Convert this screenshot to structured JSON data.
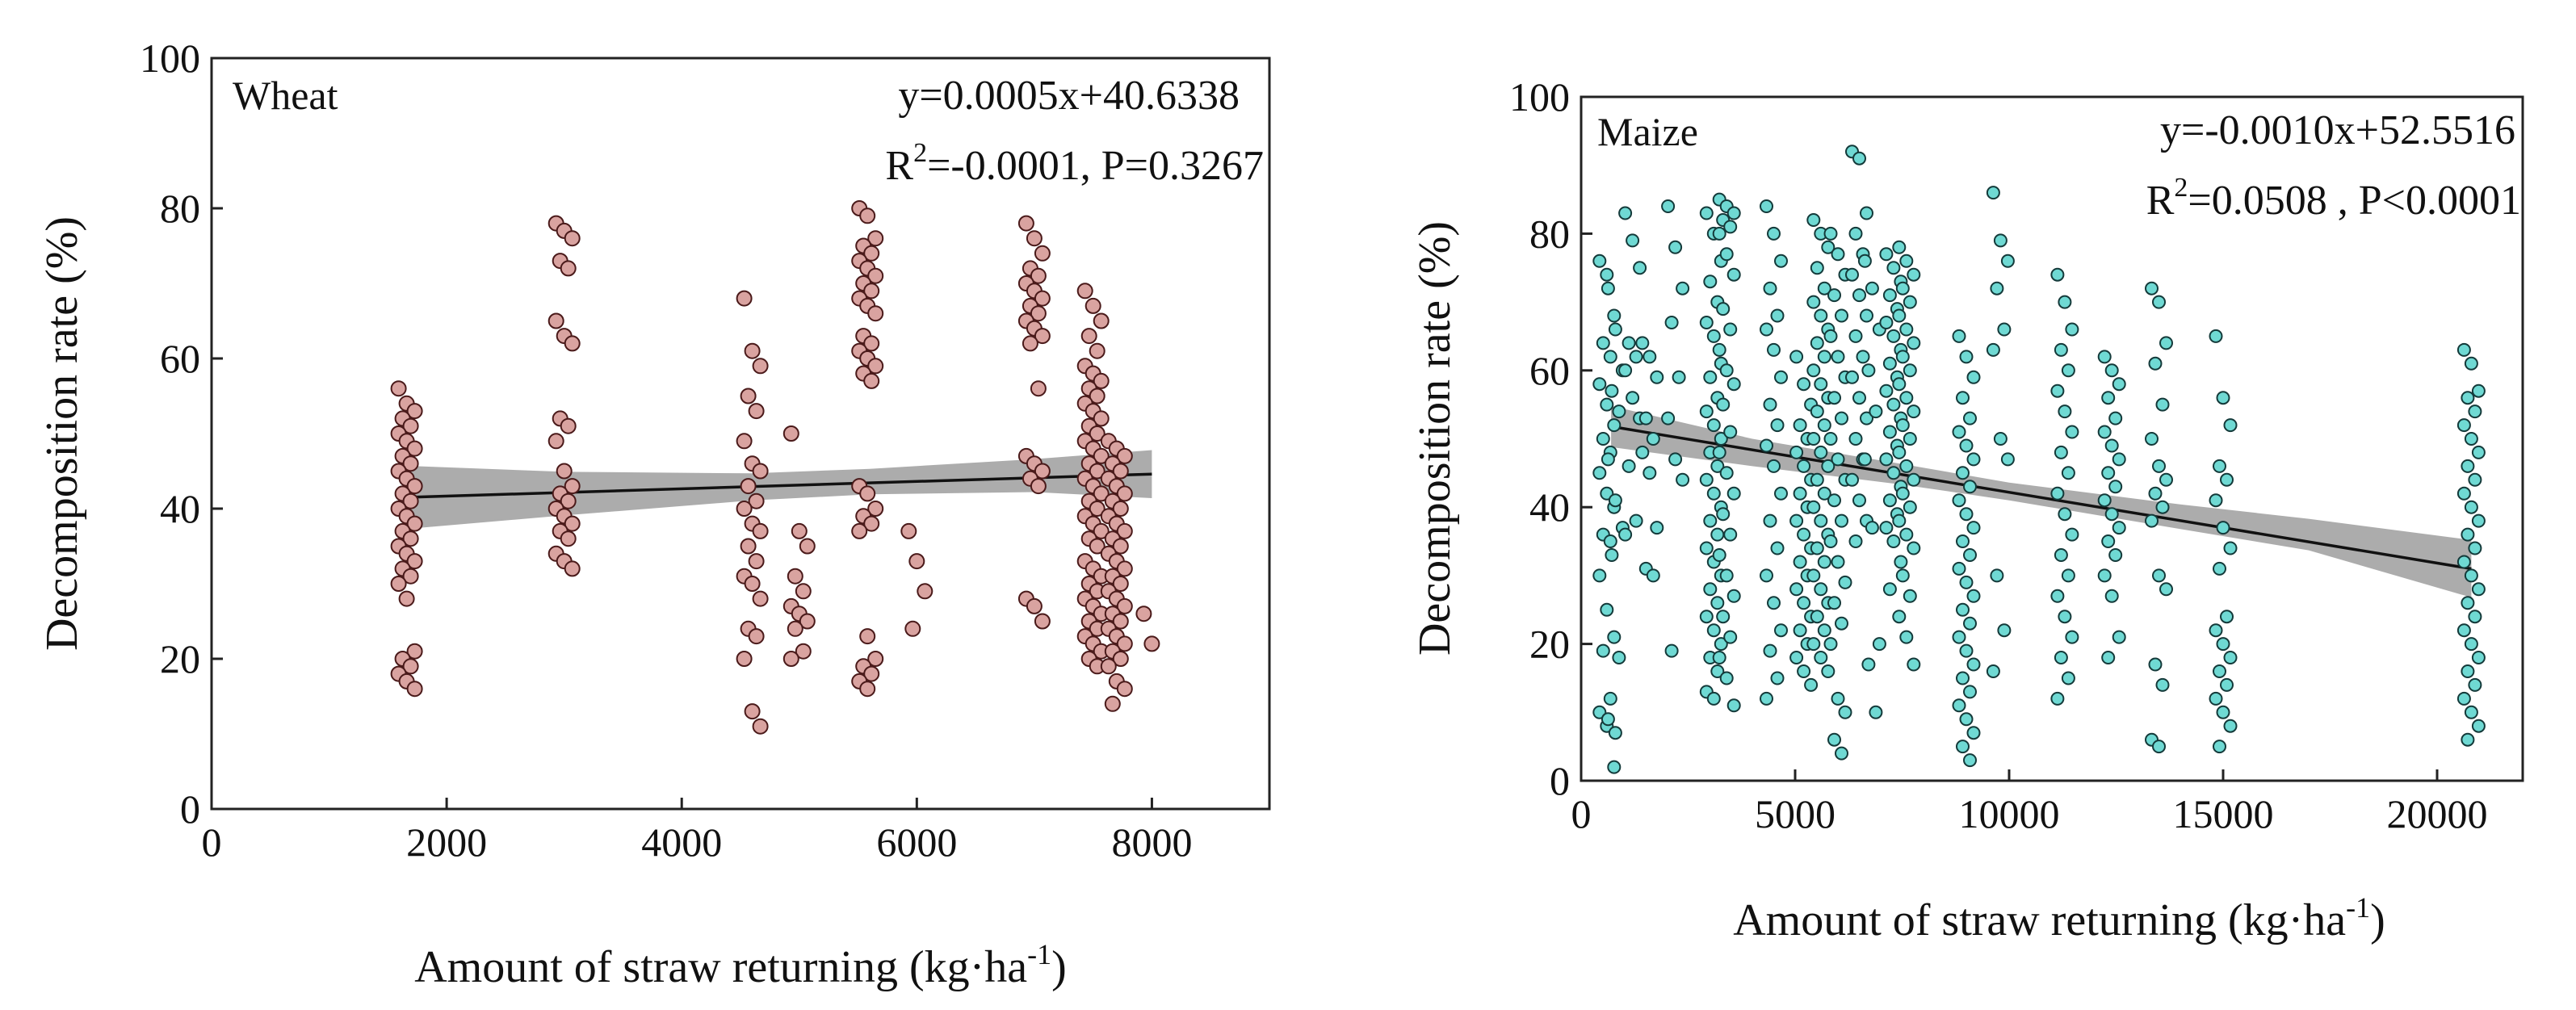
{
  "chart_data": [
    {
      "type": "scatter",
      "panel_label": "Wheat",
      "xlabel": "Amount of straw returning (kg·ha",
      "xlabel_sup": "-1",
      "xlabel_end": ")",
      "ylabel": "Decomposition rate (%)",
      "xlim": [
        0,
        9000
      ],
      "ylim": [
        0,
        100
      ],
      "xticks": [
        0,
        2000,
        4000,
        6000,
        8000
      ],
      "yticks": [
        0,
        20,
        40,
        60,
        80,
        100
      ],
      "equation": "y=0.0005x+40.6338",
      "stats_pre": "R",
      "stats_sup": "2",
      "stats_post": "=-0.0001, P=0.3267",
      "marker_fill": "#d9a3a0",
      "marker_stroke": "#4a1a1a",
      "fit": {
        "x": [
          1660,
          8000
        ],
        "y": [
          41.5,
          44.6
        ]
      },
      "ci_band": {
        "x": [
          1660,
          3000,
          4600,
          5600,
          7000,
          8000
        ],
        "upper": [
          45.7,
          44.9,
          44.7,
          45.3,
          46.6,
          47.8
        ],
        "lower": [
          37.3,
          39.1,
          41.1,
          41.9,
          42.2,
          41.4
        ]
      },
      "groups": [
        {
          "x": 1660,
          "y": [
            56,
            54,
            53,
            52,
            51,
            50,
            49,
            48,
            47,
            46,
            45,
            44,
            43,
            42,
            41,
            40,
            39,
            38,
            37,
            36,
            35,
            34,
            33,
            32,
            31,
            30,
            28,
            21,
            20,
            19,
            18,
            17,
            16
          ]
        },
        {
          "x": 3000,
          "y": [
            78,
            77,
            76,
            73,
            72,
            65,
            63,
            62,
            52,
            51,
            49,
            45,
            43,
            42,
            41,
            40,
            39,
            38,
            37,
            36,
            34,
            33,
            32
          ]
        },
        {
          "x": 4600,
          "y": [
            68,
            61,
            59,
            55,
            53,
            49,
            46,
            45,
            43,
            41,
            40,
            38,
            37,
            35,
            33,
            31,
            30,
            28,
            24,
            23,
            20,
            13,
            11
          ]
        },
        {
          "x": 5000,
          "y": [
            50,
            37,
            35,
            31,
            29,
            27,
            26,
            25,
            24,
            21,
            20
          ]
        },
        {
          "x": 5580,
          "y": [
            80,
            79,
            76,
            75,
            74,
            73,
            72,
            71,
            70,
            69,
            68,
            67,
            66,
            63,
            62,
            61,
            60,
            59,
            58,
            57,
            43,
            42,
            40,
            39,
            38,
            37,
            23,
            20,
            19,
            18,
            17,
            16
          ]
        },
        {
          "x": 6000,
          "y": [
            37,
            33,
            29,
            24
          ]
        },
        {
          "x": 7000,
          "y": [
            78,
            76,
            74,
            72,
            71,
            70,
            69,
            68,
            67,
            66,
            65,
            64,
            63,
            62,
            56,
            47,
            46,
            45,
            44,
            43,
            28,
            27,
            25
          ]
        },
        {
          "x": 7500,
          "y": [
            69,
            67,
            65,
            63,
            61,
            59,
            58,
            57,
            56,
            55,
            54,
            53,
            52,
            51,
            50,
            49,
            48,
            47,
            46,
            45,
            44,
            43,
            42,
            41,
            40,
            39,
            38,
            37,
            36,
            35,
            33,
            32,
            31,
            30,
            29,
            28,
            27,
            26,
            25,
            24,
            23,
            22,
            21,
            20,
            19
          ]
        },
        {
          "x": 7700,
          "y": [
            49,
            48,
            47,
            46,
            45,
            44,
            43,
            42,
            41,
            40,
            39,
            38,
            37,
            36,
            35,
            34,
            33,
            32,
            31,
            30,
            29,
            28,
            27,
            26,
            25,
            24,
            23,
            22,
            21,
            20,
            19,
            17,
            16,
            14
          ]
        },
        {
          "x": 8000,
          "y": [
            26,
            22
          ]
        }
      ]
    },
    {
      "type": "scatter",
      "panel_label": "Maize",
      "xlabel": "Amount of straw returning (kg·ha",
      "xlabel_sup": "-1",
      "xlabel_end": ")",
      "ylabel": "Decomposition rate (%)",
      "xlim": [
        0,
        22000
      ],
      "ylim": [
        0,
        100
      ],
      "xticks": [
        0,
        5000,
        10000,
        15000,
        20000
      ],
      "yticks": [
        0,
        20,
        40,
        60,
        80,
        100
      ],
      "equation": "y=-0.0010x+52.5516",
      "stats_pre": "R",
      "stats_sup": "2",
      "stats_post": "=0.0508 , P<0.0001",
      "marker_fill": "#6fd9d3",
      "marker_stroke": "#143a3a",
      "fit": {
        "x": [
          700,
          20800
        ],
        "y": [
          51.8,
          31.0
        ]
      },
      "ci_band": {
        "x": [
          700,
          4000,
          7500,
          10000,
          14000,
          17000,
          20800
        ],
        "upper": [
          54.8,
          50.0,
          46.3,
          43.6,
          40.4,
          38.3,
          35.2
        ],
        "lower": [
          48.8,
          46.0,
          43.3,
          41.0,
          36.8,
          33.7,
          26.8
        ]
      },
      "groups": [
        {
          "x": 600,
          "y": [
            76,
            74,
            68,
            64,
            62,
            58,
            55,
            52,
            50,
            48,
            45,
            42,
            40,
            36,
            35,
            30,
            25,
            21,
            19,
            12,
            10,
            8,
            2
          ]
        },
        {
          "x": 800,
          "y": [
            72,
            66,
            60,
            57,
            54,
            47,
            41,
            37,
            33,
            18,
            9,
            7
          ]
        },
        {
          "x": 1200,
          "y": [
            83,
            79,
            75,
            64,
            62,
            60,
            56,
            53,
            46,
            38,
            36
          ]
        },
        {
          "x": 1600,
          "y": [
            64,
            62,
            59,
            53,
            50,
            48,
            45,
            37,
            31,
            30
          ]
        },
        {
          "x": 2200,
          "y": [
            84,
            78,
            72,
            67,
            59,
            53,
            47,
            44,
            19
          ]
        },
        {
          "x": 3100,
          "y": [
            83,
            80,
            76,
            73,
            70,
            67,
            65,
            61,
            59,
            56,
            54,
            52,
            50,
            48,
            46,
            44,
            42,
            40,
            38,
            36,
            34,
            32,
            30,
            28,
            26,
            24,
            22,
            20,
            18,
            16,
            13,
            12
          ]
        },
        {
          "x": 3400,
          "y": [
            85,
            84,
            83,
            82,
            81,
            80,
            77,
            74,
            69,
            66,
            63,
            60,
            58,
            55,
            51,
            48,
            45,
            42,
            39,
            36,
            33,
            30,
            27,
            24,
            21,
            18,
            15,
            11
          ]
        },
        {
          "x": 4500,
          "y": [
            84,
            80,
            76,
            72,
            68,
            66,
            63,
            59,
            55,
            52,
            49,
            46,
            42,
            38,
            34,
            30,
            26,
            22,
            19,
            15,
            12
          ]
        },
        {
          "x": 5200,
          "y": [
            62,
            58,
            55,
            52,
            50,
            48,
            46,
            44,
            42,
            40,
            38,
            36,
            34,
            32,
            30,
            28,
            26,
            24,
            22,
            20,
            18,
            16,
            14
          ]
        },
        {
          "x": 5600,
          "y": [
            82,
            80,
            78,
            75,
            72,
            70,
            68,
            66,
            64,
            62,
            60,
            58,
            56,
            54,
            52,
            50,
            48,
            46,
            44,
            42,
            40,
            38,
            36,
            34,
            32,
            30,
            28,
            26,
            24,
            22,
            20,
            18,
            16
          ]
        },
        {
          "x": 6000,
          "y": [
            80,
            77,
            74,
            71,
            68,
            65,
            62,
            59,
            56,
            53,
            50,
            47,
            44,
            41,
            38,
            35,
            32,
            29,
            26,
            23,
            20,
            12,
            10,
            6,
            4
          ]
        },
        {
          "x": 6500,
          "y": [
            92,
            91,
            83,
            80,
            77,
            74,
            71,
            68,
            65,
            62,
            59,
            56,
            53,
            50,
            47,
            44,
            41,
            38,
            35
          ]
        },
        {
          "x": 6800,
          "y": [
            76,
            72,
            66,
            60,
            54,
            47,
            37,
            20,
            17,
            10
          ]
        },
        {
          "x": 7300,
          "y": [
            77,
            75,
            73,
            71,
            69,
            67,
            65,
            63,
            61,
            59,
            57,
            55,
            53,
            51,
            49,
            47,
            45,
            43,
            41,
            39,
            37,
            35,
            32,
            28
          ]
        },
        {
          "x": 7600,
          "y": [
            78,
            76,
            74,
            72,
            70,
            68,
            66,
            64,
            62,
            60,
            58,
            56,
            54,
            52,
            50,
            48,
            46,
            44,
            42,
            40,
            38,
            36,
            34,
            30,
            27,
            24,
            21,
            17
          ]
        },
        {
          "x": 9000,
          "y": [
            65,
            62,
            59,
            56,
            53,
            51,
            49,
            47,
            45,
            43,
            41,
            39,
            37,
            35,
            33,
            31,
            29,
            27,
            25,
            23,
            21,
            19,
            17,
            15,
            13,
            11,
            9,
            7,
            5,
            3
          ]
        },
        {
          "x": 9800,
          "y": [
            86,
            79,
            76,
            72,
            66,
            63,
            50,
            47,
            30,
            22,
            16
          ]
        },
        {
          "x": 11300,
          "y": [
            74,
            70,
            66,
            63,
            60,
            57,
            54,
            51,
            48,
            45,
            42,
            39,
            36,
            33,
            30,
            27,
            24,
            21,
            18,
            15,
            12
          ]
        },
        {
          "x": 12400,
          "y": [
            62,
            60,
            58,
            56,
            53,
            51,
            49,
            47,
            45,
            43,
            41,
            39,
            37,
            35,
            33,
            30,
            27,
            21,
            18
          ]
        },
        {
          "x": 13500,
          "y": [
            72,
            70,
            64,
            61,
            55,
            50,
            46,
            44,
            42,
            40,
            38,
            30,
            28,
            17,
            14,
            6,
            5
          ]
        },
        {
          "x": 15000,
          "y": [
            65,
            56,
            52,
            46,
            44,
            41,
            37,
            34,
            31,
            24,
            22,
            20,
            18,
            16,
            14,
            12,
            10,
            8,
            5
          ]
        },
        {
          "x": 20800,
          "y": [
            63,
            61,
            57,
            56,
            54,
            52,
            50,
            48,
            46,
            44,
            42,
            40,
            38,
            36,
            34,
            32,
            30,
            28,
            26,
            24,
            22,
            20,
            18,
            16,
            14,
            12,
            10,
            8,
            6
          ]
        }
      ]
    }
  ]
}
